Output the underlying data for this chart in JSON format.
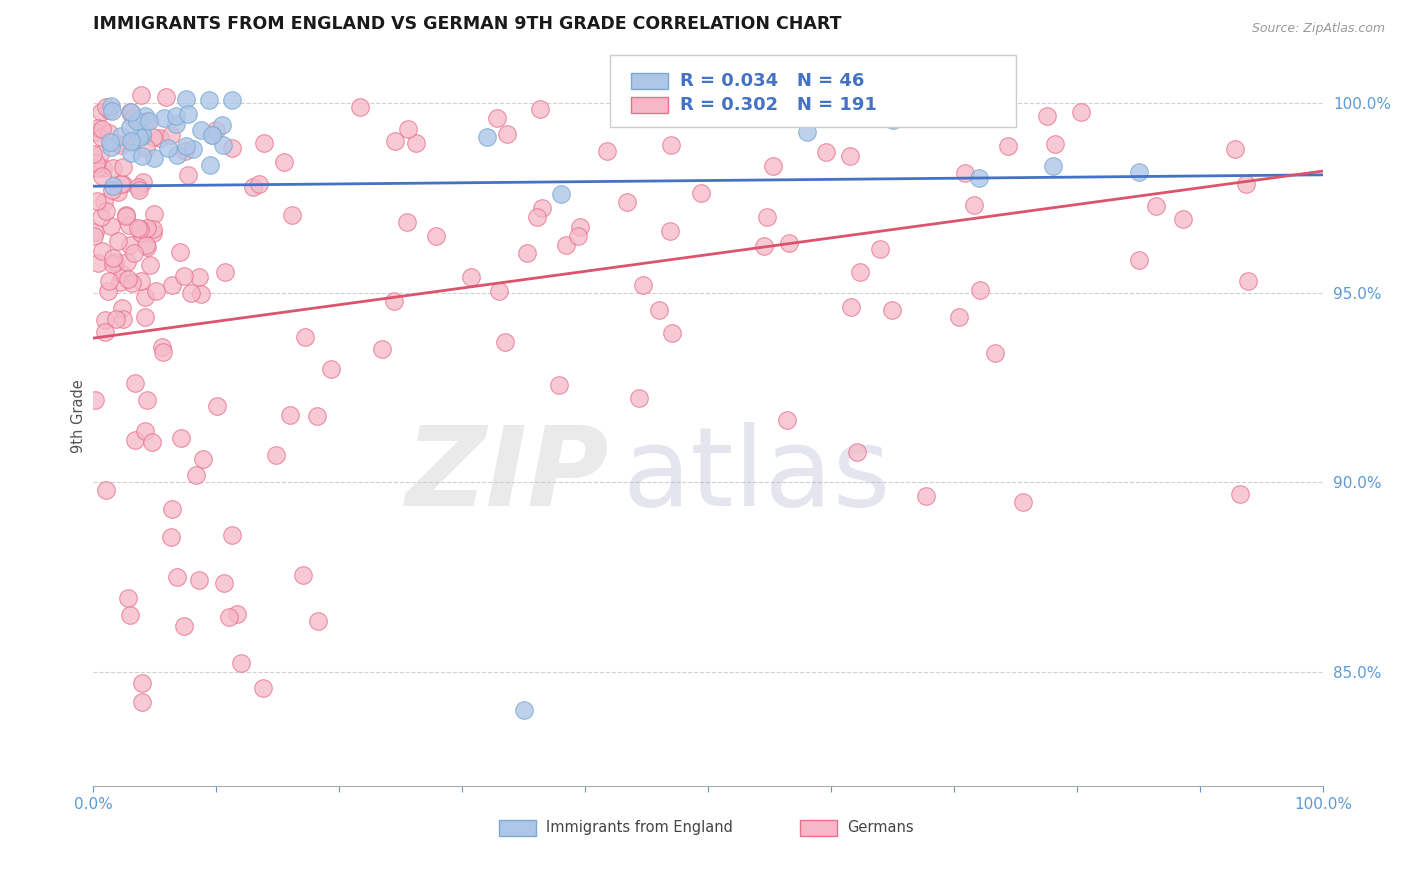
{
  "title": "IMMIGRANTS FROM ENGLAND VS GERMAN 9TH GRADE CORRELATION CHART",
  "source": "Source: ZipAtlas.com",
  "ylabel": "9th Grade",
  "right_yticks": [
    85.0,
    90.0,
    95.0,
    100.0
  ],
  "x_min": 0.0,
  "x_max": 100.0,
  "y_min": 82.0,
  "y_max": 101.5,
  "england_R": 0.034,
  "england_N": 46,
  "german_R": 0.302,
  "german_N": 191,
  "england_color": "#aec6e8",
  "german_color": "#f5b8c8",
  "england_edge": "#7aaad0",
  "german_edge": "#e8708a",
  "trend_england_color": "#4472c4",
  "trend_german_color": "#d9546c",
  "background_color": "#ffffff",
  "title_color": "#1a1a1a",
  "title_fontsize": 12.5,
  "axis_color": "#5b9bd5",
  "grid_color": "#d0d0d0",
  "legend_R_color": "#4472c4",
  "eng_trend_start_y": 97.8,
  "eng_trend_end_y": 98.1,
  "ger_trend_start_y": 93.8,
  "ger_trend_end_y": 98.2
}
